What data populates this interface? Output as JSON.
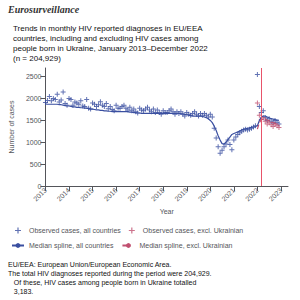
{
  "chart_data": {
    "type": "scatter",
    "title": "Trends in monthly HIV reported diagnoses in EU/EEA\ncountries, including and excluding HIV cases among\npeople born in Ukraine, January 2013–December 2022\n(n = 204,929)",
    "annotations": [
      "Eurosurveillance",
      "EU/EEA: European Union/European Economic Area.",
      "The total HIV diagnoses reported during the period were 204,929.\n   Of these, HIV cases among people born in Ukraine totalled\n   3,183."
    ],
    "xlabel": "Year",
    "ylabel": "Number of cases",
    "xlim": [
      2013.0,
      2023.3
    ],
    "xticks": [
      2013,
      2014,
      2015,
      2016,
      2017,
      2018,
      2019,
      2020,
      2021,
      2022,
      2023
    ],
    "ylim": [
      0,
      2700
    ],
    "yticks": [
      0,
      500,
      1000,
      1500,
      2000,
      2500
    ],
    "grid": false,
    "legend": "bottom",
    "vlines": [
      {
        "x": 2022.17,
        "color": "#e8546a"
      }
    ],
    "x": [
      2013,
      2013.0833333333,
      2013.1666666667,
      2013.25,
      2013.3333333333,
      2013.4166666667,
      2013.5,
      2013.5833333333,
      2013.6666666667,
      2013.75,
      2013.8333333333,
      2013.9166666667,
      2014,
      2014.0833333333,
      2014.1666666667,
      2014.25,
      2014.3333333333,
      2014.4166666667,
      2014.5,
      2014.5833333333,
      2014.6666666667,
      2014.75,
      2014.8333333333,
      2014.9166666667,
      2015,
      2015.0833333333,
      2015.1666666667,
      2015.25,
      2015.3333333333,
      2015.4166666667,
      2015.5,
      2015.5833333333,
      2015.6666666667,
      2015.75,
      2015.8333333333,
      2015.9166666667,
      2016,
      2016.0833333333,
      2016.1666666667,
      2016.25,
      2016.3333333333,
      2016.4166666667,
      2016.5,
      2016.5833333333,
      2016.6666666667,
      2016.75,
      2016.8333333333,
      2016.9166666667,
      2017,
      2017.0833333333,
      2017.1666666667,
      2017.25,
      2017.3333333333,
      2017.4166666667,
      2017.5,
      2017.5833333333,
      2017.6666666667,
      2017.75,
      2017.8333333333,
      2017.9166666667,
      2018,
      2018.0833333333,
      2018.1666666667,
      2018.25,
      2018.3333333333,
      2018.4166666667,
      2018.5,
      2018.5833333333,
      2018.6666666667,
      2018.75,
      2018.8333333333,
      2018.9166666667,
      2019,
      2019.0833333333,
      2019.1666666667,
      2019.25,
      2019.3333333333,
      2019.4166666667,
      2019.5,
      2019.5833333333,
      2019.6666666667,
      2019.75,
      2019.8333333333,
      2019.9166666667,
      2020,
      2020.0833333333,
      2020.1666666667,
      2020.25,
      2020.3333333333,
      2020.4166666667,
      2020.5,
      2020.5833333333,
      2020.6666666667,
      2020.75,
      2020.8333333333,
      2020.9166666667,
      2021,
      2021.0833333333,
      2021.1666666667,
      2021.25,
      2021.3333333333,
      2021.4166666667,
      2021.5,
      2021.5833333333,
      2021.6666666667,
      2021.75,
      2021.8333333333,
      2021.9166666667,
      2022,
      2022.0833333333,
      2022.1666666667,
      2022.25,
      2022.3333333333,
      2022.4166666667,
      2022.5,
      2022.5833333333,
      2022.6666666667,
      2022.75,
      2022.8333333333,
      2022.9166666667
    ],
    "series": [
      {
        "name": "Observed cases, all countries",
        "type": "scatter",
        "marker": "plus",
        "color": "#3a4fa0",
        "values": [
          1913,
          1958,
          2050,
          1950,
          2000,
          1980,
          2100,
          1920,
          1970,
          2150,
          1890,
          1850,
          2000,
          1980,
          1850,
          1920,
          1900,
          1870,
          1950,
          1830,
          1820,
          1980,
          1780,
          1760,
          1900,
          1870,
          1820,
          1860,
          1930,
          1850,
          1820,
          1890,
          1770,
          1820,
          1750,
          1720,
          1850,
          1780,
          1780,
          1820,
          1850,
          1780,
          1740,
          1800,
          1720,
          1760,
          1700,
          1670,
          1780,
          1740,
          1720,
          1760,
          1800,
          1740,
          1700,
          1760,
          1680,
          1740,
          1680,
          1640,
          1720,
          1680,
          1680,
          1720,
          1760,
          1700,
          1640,
          1700,
          1660,
          1700,
          1640,
          1600,
          1680,
          1640,
          1620,
          1660,
          1700,
          1640,
          1600,
          1660,
          1620,
          1660,
          1620,
          1580,
          1640,
          1580,
          1320,
          1100,
          900,
          750,
          820,
          900,
          960,
          1050,
          950,
          830,
          1050,
          1120,
          1180,
          1220,
          1250,
          1280,
          1300,
          1280,
          1300,
          1320,
          1350,
          1380,
          2550,
          1820,
          1680,
          1720,
          1560,
          1500,
          1540,
          1480,
          1440,
          1500,
          1460,
          1420
        ]
      },
      {
        "name": "Observed cases, excl. Ukrainian",
        "type": "scatter",
        "marker": "plus",
        "color": "#c05070",
        "values": [
          null,
          null,
          null,
          null,
          null,
          null,
          null,
          null,
          null,
          null,
          null,
          null,
          null,
          null,
          null,
          null,
          null,
          null,
          null,
          null,
          null,
          null,
          null,
          null,
          null,
          null,
          null,
          null,
          null,
          null,
          null,
          null,
          null,
          null,
          null,
          null,
          null,
          null,
          null,
          null,
          null,
          null,
          null,
          null,
          null,
          null,
          null,
          null,
          null,
          null,
          null,
          null,
          null,
          null,
          null,
          null,
          null,
          null,
          null,
          null,
          null,
          null,
          null,
          null,
          null,
          null,
          null,
          null,
          null,
          null,
          null,
          null,
          null,
          null,
          null,
          null,
          null,
          null,
          null,
          null,
          null,
          null,
          null,
          null,
          null,
          null,
          null,
          null,
          null,
          null,
          null,
          null,
          null,
          null,
          null,
          null,
          null,
          null,
          null,
          null,
          null,
          null,
          null,
          null,
          null,
          null,
          null,
          null,
          1900,
          1620,
          1520,
          1560,
          1480,
          1420,
          1460,
          1400,
          1360,
          1420,
          1380,
          1340
        ]
      },
      {
        "name": "Median spline, all countries",
        "type": "line",
        "line_style": "solid",
        "color": "#3a4fa0",
        "values": [
          1880,
          1870,
          1870,
          1870,
          1870,
          1870,
          1870,
          1860,
          1860,
          1850,
          1840,
          1830,
          1830,
          1820,
          1810,
          1810,
          1800,
          1800,
          1790,
          1790,
          1780,
          1780,
          1770,
          1760,
          1760,
          1750,
          1740,
          1740,
          1730,
          1730,
          1720,
          1720,
          1710,
          1710,
          1700,
          1700,
          1700,
          1700,
          1700,
          1700,
          1700,
          1700,
          1700,
          1690,
          1690,
          1680,
          1680,
          1670,
          1670,
          1660,
          1660,
          1660,
          1660,
          1660,
          1660,
          1660,
          1660,
          1660,
          1660,
          1660,
          1660,
          1660,
          1660,
          1660,
          1660,
          1660,
          1660,
          1660,
          1660,
          1650,
          1650,
          1640,
          1630,
          1620,
          1610,
          1600,
          1600,
          1600,
          1600,
          1600,
          1590,
          1580,
          1560,
          1540,
          1500,
          1450,
          1370,
          1270,
          1150,
          1050,
          970,
          960,
          1000,
          1060,
          1120,
          1180,
          1200,
          1220,
          1240,
          1260,
          1280,
          1300,
          1310,
          1320,
          1330,
          1340,
          1350,
          1360,
          1380,
          1500,
          1580,
          1600,
          1600,
          1580,
          1560,
          1540,
          1530,
          1520,
          1510,
          1500
        ]
      },
      {
        "name": "Median spline, excl. Ukrainian",
        "type": "line",
        "line_style": "dashed",
        "color": "#c05070",
        "values": [
          null,
          null,
          null,
          null,
          null,
          null,
          null,
          null,
          null,
          null,
          null,
          null,
          null,
          null,
          null,
          null,
          null,
          null,
          null,
          null,
          null,
          null,
          null,
          null,
          null,
          null,
          null,
          null,
          null,
          null,
          null,
          null,
          null,
          null,
          null,
          null,
          null,
          null,
          null,
          null,
          null,
          null,
          null,
          null,
          null,
          null,
          null,
          null,
          null,
          null,
          null,
          null,
          null,
          null,
          null,
          null,
          null,
          null,
          null,
          null,
          null,
          null,
          null,
          null,
          null,
          null,
          null,
          null,
          null,
          null,
          null,
          null,
          null,
          null,
          null,
          null,
          null,
          null,
          null,
          null,
          null,
          null,
          null,
          null,
          null,
          null,
          null,
          null,
          null,
          null,
          null,
          null,
          null,
          null,
          null,
          null,
          null,
          null,
          null,
          null,
          null,
          null,
          null,
          null,
          null,
          null,
          null,
          null,
          1300,
          1450,
          1520,
          1540,
          1530,
          1510,
          1490,
          1470,
          1450,
          1430,
          1410,
          1390
        ]
      }
    ]
  }
}
